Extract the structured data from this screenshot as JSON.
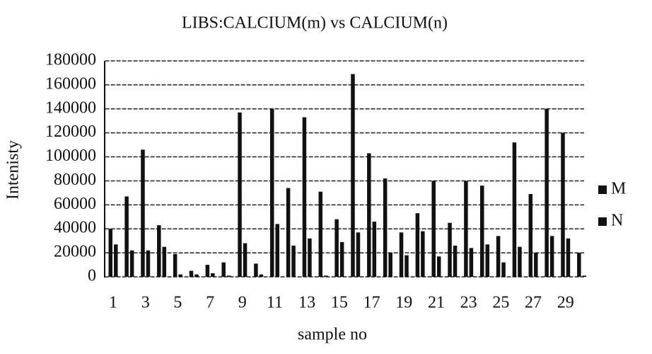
{
  "chart_data": {
    "type": "bar",
    "title": "LIBS:CALCIUM(m) vs CALCIUM(n)",
    "x_label": "sample no",
    "y_label": "Intenisty",
    "categories": [
      "1",
      null,
      "3",
      null,
      "5",
      null,
      "7",
      null,
      "9",
      null,
      "11",
      null,
      "13",
      null,
      "15",
      null,
      "17",
      null,
      "19",
      null,
      "21",
      null,
      "23",
      null,
      "25",
      null,
      "27",
      null,
      "29",
      null
    ],
    "series": [
      {
        "name": "M",
        "color": "#111111",
        "values": [
          40000,
          67000,
          106000,
          43000,
          19000,
          5000,
          10000,
          12000,
          137000,
          11000,
          140000,
          74000,
          133000,
          71000,
          48000,
          169000,
          103000,
          82000,
          37000,
          53000,
          80000,
          45000,
          80000,
          76000,
          34000,
          112000,
          69000,
          140000,
          120000,
          20000
        ]
      },
      {
        "name": "N",
        "color": "#111111",
        "values": [
          27000,
          22000,
          22000,
          25000,
          2000,
          2000,
          3000,
          1000,
          28000,
          2000,
          44000,
          26000,
          32000,
          1000,
          29000,
          37000,
          46000,
          20000,
          18000,
          38000,
          17000,
          26000,
          24000,
          27000,
          12000,
          25000,
          20000,
          34000,
          32000,
          1000
        ]
      }
    ],
    "ylim": [
      0,
      180000
    ],
    "yticks": [
      0,
      20000,
      40000,
      60000,
      80000,
      100000,
      120000,
      140000,
      160000,
      180000
    ],
    "grid": true,
    "legend": "right"
  }
}
